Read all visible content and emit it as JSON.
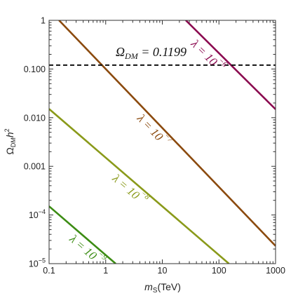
{
  "chart_data": {
    "type": "line",
    "xscale": "log",
    "yscale": "log",
    "xlim": [
      0.1,
      1000
    ],
    "ylim": [
      1e-05,
      1
    ],
    "grid": false,
    "xlabel": {
      "main": "m",
      "sub": "S",
      "tail": "(TeV)"
    },
    "ylabel": {
      "main": "Ω",
      "sub": "DM",
      "tail": "h",
      "sup": "2"
    },
    "xticks": [
      "0.1",
      "1",
      "10",
      "100",
      "1000"
    ],
    "yticks": [
      {
        "value": 1,
        "label": "1"
      },
      {
        "value": 0.1,
        "label": "0.100"
      },
      {
        "value": 0.01,
        "label": "0.010"
      },
      {
        "value": 0.001,
        "label": "0.001"
      },
      {
        "value": 0.0001,
        "label": "10",
        "exp": "−4"
      },
      {
        "value": 1e-05,
        "label": "10",
        "exp": "−5"
      }
    ],
    "reference": {
      "y": 0.1199,
      "style": "dashed",
      "label": {
        "main": "Ω",
        "sub": "DM",
        "eq": " = 0.1199"
      }
    },
    "series": [
      {
        "label": {
          "main": "λ = 10",
          "exp": "−6"
        },
        "color": "#8b0a50",
        "x": [
          26,
          1000
        ],
        "y": [
          1,
          0.0149
        ]
      },
      {
        "label": {
          "main": "λ = 10",
          "exp": "−7"
        },
        "color": "#8b4a0e",
        "x": [
          0.15,
          1000
        ],
        "y": [
          1,
          2.31e-05
        ]
      },
      {
        "label": {
          "main": "λ = 10",
          "exp": "−8"
        },
        "color": "#8a9a1a",
        "x": [
          0.1,
          150
        ],
        "y": [
          0.0151,
          1e-05
        ]
      },
      {
        "label": {
          "main": "λ = 10",
          "exp": "−9"
        },
        "color": "#3c8c14",
        "x": [
          0.1,
          1.5
        ],
        "y": [
          0.000151,
          1e-05
        ]
      }
    ]
  }
}
